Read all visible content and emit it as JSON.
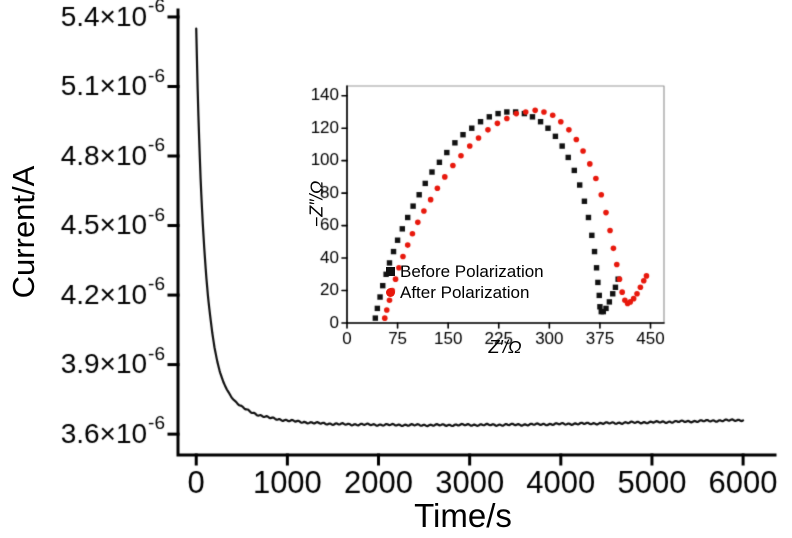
{
  "figure": {
    "background": "#ffffff"
  },
  "chart_data": [
    {
      "id": "main",
      "type": "line",
      "title": "",
      "xlabel": "Time/s",
      "ylabel": "Current/A",
      "x_ticks": [
        0,
        1000,
        2000,
        3000,
        4000,
        5000,
        6000
      ],
      "y_ticks": [
        3.6,
        3.9,
        4.2,
        4.5,
        4.8,
        5.1,
        5.4
      ],
      "y_tick_suffix": "×10",
      "y_tick_exponent": "-6",
      "y_unit_scale": "1e-6 A",
      "xlim": [
        -200,
        6350
      ],
      "ylim": [
        3.51,
        5.43
      ],
      "grid": false,
      "line_color": "#111111",
      "points": [
        [
          0,
          5.35
        ],
        [
          10,
          5.18
        ],
        [
          20,
          5.02
        ],
        [
          35,
          4.84
        ],
        [
          50,
          4.68
        ],
        [
          70,
          4.52
        ],
        [
          90,
          4.39
        ],
        [
          110,
          4.28
        ],
        [
          130,
          4.19
        ],
        [
          150,
          4.12
        ],
        [
          175,
          4.04
        ],
        [
          200,
          3.975
        ],
        [
          230,
          3.915
        ],
        [
          260,
          3.868
        ],
        [
          300,
          3.822
        ],
        [
          340,
          3.79
        ],
        [
          380,
          3.764
        ],
        [
          420,
          3.745
        ],
        [
          460,
          3.73
        ],
        [
          500,
          3.718
        ],
        [
          560,
          3.703
        ],
        [
          620,
          3.692
        ],
        [
          700,
          3.681
        ],
        [
          800,
          3.671
        ],
        [
          900,
          3.664
        ],
        [
          1000,
          3.659
        ],
        [
          1150,
          3.653
        ],
        [
          1300,
          3.648
        ],
        [
          1500,
          3.644
        ],
        [
          1700,
          3.642
        ],
        [
          1900,
          3.641
        ],
        [
          2100,
          3.64
        ],
        [
          2400,
          3.639
        ],
        [
          2700,
          3.639
        ],
        [
          3000,
          3.64
        ],
        [
          3300,
          3.64
        ],
        [
          3600,
          3.641
        ],
        [
          3900,
          3.643
        ],
        [
          4200,
          3.645
        ],
        [
          4500,
          3.647
        ],
        [
          4800,
          3.65
        ],
        [
          5100,
          3.652
        ],
        [
          5400,
          3.655
        ],
        [
          5700,
          3.658
        ],
        [
          6000,
          3.661
        ]
      ]
    },
    {
      "id": "inset",
      "type": "scatter",
      "title": "",
      "xlabel": "Z′/Ω",
      "ylabel": "−Z″/Ω",
      "x_ticks": [
        0,
        75,
        150,
        225,
        300,
        375,
        450
      ],
      "y_ticks": [
        0,
        20,
        40,
        60,
        80,
        100,
        120,
        140
      ],
      "xlim": [
        0,
        470
      ],
      "ylim": [
        0,
        146
      ],
      "grid": false,
      "legend_position": "lower-left-inside",
      "series": [
        {
          "name": "Before Polarization",
          "color": "#111111",
          "marker": "square",
          "points": [
            [
              42,
              3
            ],
            [
              45,
              9
            ],
            [
              49,
              16
            ],
            [
              53,
              23
            ],
            [
              58,
              30
            ],
            [
              63,
              37
            ],
            [
              69,
              44
            ],
            [
              75,
              51
            ],
            [
              82,
              58
            ],
            [
              90,
              65
            ],
            [
              98,
              72
            ],
            [
              107,
              79
            ],
            [
              116,
              86
            ],
            [
              126,
              93
            ],
            [
              137,
              99
            ],
            [
              148,
              105
            ],
            [
              160,
              111
            ],
            [
              172,
              116
            ],
            [
              185,
              120
            ],
            [
              198,
              124
            ],
            [
              211,
              127
            ],
            [
              224,
              129
            ],
            [
              237,
              130
            ],
            [
              250,
              130
            ],
            [
              263,
              129
            ],
            [
              275,
              127
            ],
            [
              287,
              124
            ],
            [
              298,
              120
            ],
            [
              309,
              115
            ],
            [
              319,
              109
            ],
            [
              328,
              102
            ],
            [
              337,
              94
            ],
            [
              345,
              85
            ],
            [
              352,
              75
            ],
            [
              358,
              65
            ],
            [
              363,
              54
            ],
            [
              367,
              44
            ],
            [
              370,
              34
            ],
            [
              372,
              25
            ],
            [
              374,
              17
            ],
            [
              375,
              10
            ],
            [
              377,
              7
            ],
            [
              380,
              7
            ],
            [
              384,
              9
            ],
            [
              389,
              13
            ],
            [
              394,
              18
            ],
            [
              398,
              22
            ],
            [
              402,
              27
            ]
          ]
        },
        {
          "name": "After Polarization",
          "color": "#e8180c",
          "marker": "circle",
          "points": [
            [
              56,
              3
            ],
            [
              59,
              8
            ],
            [
              63,
              14
            ],
            [
              67,
              20
            ],
            [
              72,
              27
            ],
            [
              77,
              34
            ],
            [
              83,
              41
            ],
            [
              90,
              48
            ],
            [
              97,
              55
            ],
            [
              105,
              62
            ],
            [
              114,
              69
            ],
            [
              124,
              76
            ],
            [
              134,
              83
            ],
            [
              145,
              90
            ],
            [
              157,
              97
            ],
            [
              169,
              103
            ],
            [
              182,
              109
            ],
            [
              195,
              114
            ],
            [
              209,
              119
            ],
            [
              223,
              123
            ],
            [
              237,
              126
            ],
            [
              251,
              129
            ],
            [
              265,
              130
            ],
            [
              279,
              131
            ],
            [
              292,
              130
            ],
            [
              305,
              128
            ],
            [
              317,
              124
            ],
            [
              329,
              119
            ],
            [
              340,
              113
            ],
            [
              350,
              106
            ],
            [
              360,
              98
            ],
            [
              369,
              89
            ],
            [
              377,
              79
            ],
            [
              384,
              68
            ],
            [
              390,
              57
            ],
            [
              395,
              46
            ],
            [
              400,
              36
            ],
            [
              404,
              27
            ],
            [
              408,
              19
            ],
            [
              412,
              14
            ],
            [
              416,
              12
            ],
            [
              420,
              13
            ],
            [
              425,
              15
            ],
            [
              430,
              18
            ],
            [
              435,
              22
            ],
            [
              440,
              26
            ],
            [
              444,
              29
            ]
          ]
        }
      ]
    }
  ]
}
